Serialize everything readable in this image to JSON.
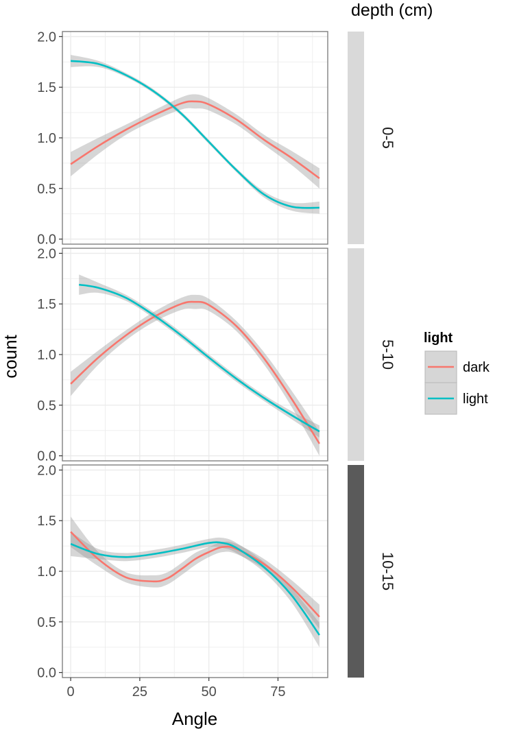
{
  "chart_data": {
    "type": "line",
    "xlabel": "Angle",
    "ylabel": "count",
    "xlim": [
      -3,
      93
    ],
    "ylim": [
      -0.05,
      2.05
    ],
    "x_ticks": [
      0,
      25,
      50,
      75
    ],
    "y_ticks": [
      "0.0",
      "0.5",
      "1.0",
      "1.5",
      "2.0"
    ],
    "y_tick_values": [
      0,
      0.5,
      1.0,
      1.5,
      2.0
    ],
    "grid": true,
    "facet_title": "depth (cm)",
    "legend": {
      "title": "light",
      "position": "right",
      "entries": [
        {
          "name": "dark",
          "color": "#F8766D"
        },
        {
          "name": "light",
          "color": "#00BFC4"
        }
      ]
    },
    "colors": {
      "dark": "#F8766D",
      "light": "#00BFC4",
      "ribbon": "#999999",
      "panel_border": "#7f7f7f",
      "grid": "#ebebeb",
      "strip_light": "#d9d9d9",
      "strip_dark": "#5a5a5a"
    },
    "panels": [
      {
        "label": "0-5",
        "strip": "light",
        "series": [
          {
            "name": "dark",
            "x": [
              0,
              10,
              20,
              30,
              40,
              45,
              50,
              60,
              70,
              80,
              90
            ],
            "y": [
              0.74,
              0.92,
              1.08,
              1.22,
              1.34,
              1.36,
              1.33,
              1.18,
              0.98,
              0.8,
              0.6
            ],
            "band": [
              0.12,
              0.08,
              0.05,
              0.05,
              0.06,
              0.07,
              0.06,
              0.05,
              0.05,
              0.07,
              0.1
            ]
          },
          {
            "name": "light",
            "x": [
              0,
              10,
              20,
              30,
              40,
              50,
              60,
              70,
              80,
              90
            ],
            "y": [
              1.76,
              1.73,
              1.62,
              1.46,
              1.24,
              0.96,
              0.68,
              0.44,
              0.32,
              0.31
            ],
            "band": [
              0.06,
              0.03,
              0.02,
              0.02,
              0.02,
              0.02,
              0.02,
              0.03,
              0.04,
              0.06
            ]
          }
        ]
      },
      {
        "label": "5-10",
        "strip": "light",
        "series": [
          {
            "name": "dark",
            "x": [
              0,
              10,
              20,
              30,
              40,
              45,
              50,
              60,
              70,
              80,
              90
            ],
            "y": [
              0.71,
              0.97,
              1.19,
              1.37,
              1.5,
              1.52,
              1.49,
              1.28,
              0.96,
              0.56,
              0.12
            ],
            "band": [
              0.12,
              0.07,
              0.05,
              0.05,
              0.06,
              0.07,
              0.06,
              0.05,
              0.06,
              0.08,
              0.12
            ]
          },
          {
            "name": "light",
            "x": [
              3,
              10,
              20,
              30,
              40,
              50,
              60,
              70,
              80,
              90
            ],
            "y": [
              1.69,
              1.66,
              1.56,
              1.39,
              1.19,
              0.97,
              0.76,
              0.57,
              0.4,
              0.24
            ],
            "band": [
              0.1,
              0.05,
              0.03,
              0.03,
              0.03,
              0.03,
              0.03,
              0.03,
              0.04,
              0.06
            ]
          }
        ]
      },
      {
        "label": "10-15",
        "strip": "dark",
        "series": [
          {
            "name": "dark",
            "x": [
              0,
              10,
              20,
              30,
              35,
              40,
              45,
              50,
              55,
              60,
              70,
              80,
              90
            ],
            "y": [
              1.39,
              1.12,
              0.94,
              0.9,
              0.93,
              1.02,
              1.12,
              1.19,
              1.24,
              1.22,
              1.07,
              0.84,
              0.55
            ],
            "band": [
              0.15,
              0.07,
              0.05,
              0.06,
              0.06,
              0.06,
              0.06,
              0.05,
              0.05,
              0.05,
              0.05,
              0.07,
              0.12
            ]
          },
          {
            "name": "light",
            "x": [
              0,
              10,
              20,
              30,
              40,
              50,
              55,
              60,
              70,
              80,
              90
            ],
            "y": [
              1.27,
              1.17,
              1.14,
              1.17,
              1.22,
              1.28,
              1.28,
              1.23,
              1.04,
              0.76,
              0.37
            ],
            "band": [
              0.12,
              0.05,
              0.04,
              0.04,
              0.04,
              0.04,
              0.05,
              0.05,
              0.05,
              0.07,
              0.12
            ]
          }
        ]
      }
    ]
  }
}
